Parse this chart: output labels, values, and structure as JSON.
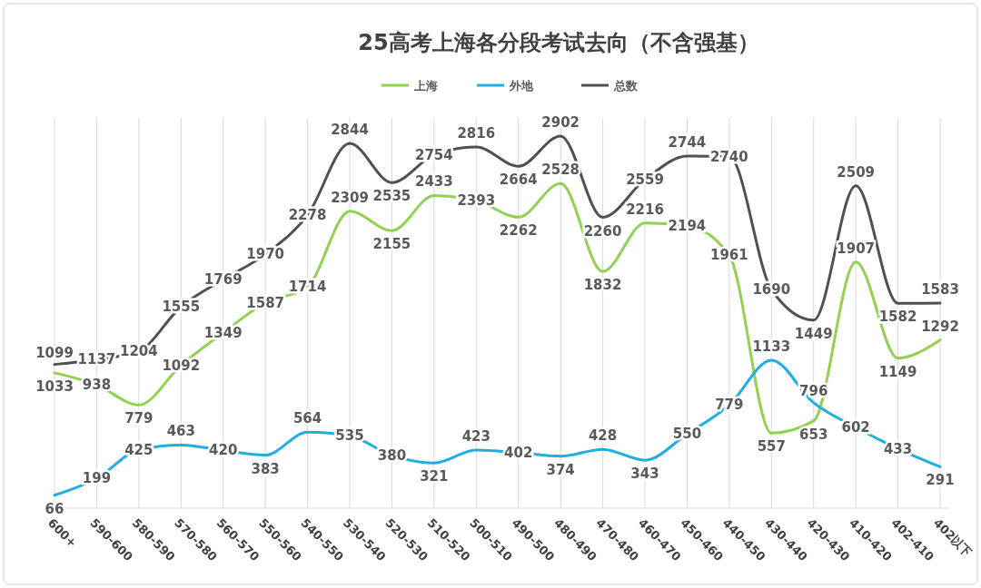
{
  "chart_data": {
    "type": "line",
    "title": "25高考上海各分段考试去向（不含强基）",
    "categories": [
      "600+",
      "590-600",
      "580-590",
      "570-580",
      "560-570",
      "550-560",
      "540-550",
      "530-540",
      "520-530",
      "510-520",
      "500-510",
      "490-500",
      "480-490",
      "470-480",
      "460-470",
      "450-460",
      "440-450",
      "430-440",
      "420-430",
      "410-420",
      "402-410",
      "402以下"
    ],
    "series": [
      {
        "name": "上海",
        "color": "#92d050",
        "values": [
          1033,
          938,
          779,
          1092,
          1349,
          1587,
          1714,
          2309,
          2155,
          2433,
          2393,
          2262,
          2528,
          1832,
          2216,
          2194,
          1961,
          557,
          653,
          1907,
          1149,
          1292
        ]
      },
      {
        "name": "外地",
        "color": "#1eaee0",
        "values": [
          66,
          199,
          425,
          463,
          420,
          383,
          564,
          535,
          380,
          321,
          423,
          402,
          374,
          428,
          343,
          550,
          779,
          1133,
          796,
          602,
          433,
          291
        ]
      },
      {
        "name": "总数",
        "color": "#505050",
        "values": [
          1099,
          1137,
          1204,
          1555,
          1769,
          1970,
          2278,
          2844,
          2535,
          2754,
          2816,
          2664,
          2902,
          2260,
          2559,
          2744,
          2740,
          1690,
          1449,
          2509,
          1582,
          1583
        ]
      }
    ],
    "data_labels": true,
    "grid": "x",
    "legend": "top",
    "marker": "none",
    "line_style": "solid"
  }
}
